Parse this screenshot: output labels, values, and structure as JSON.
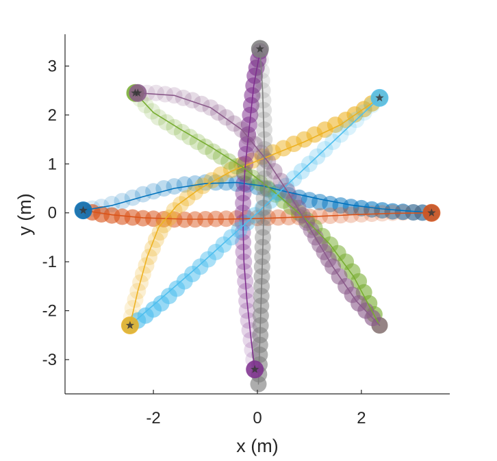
{
  "chart_data": {
    "type": "scatter",
    "title": "",
    "xlabel": "x (m)",
    "ylabel": "y (m)",
    "xlim": [
      -3.7,
      3.7
    ],
    "ylim": [
      -3.7,
      3.65
    ],
    "xticks": [
      -2,
      0,
      2
    ],
    "xtick_labels": [
      "-2",
      "0",
      "2"
    ],
    "yticks": [
      -3,
      -2,
      -1,
      0,
      1,
      2,
      3
    ],
    "ytick_labels": [
      "-3",
      "-2",
      "-1",
      "0",
      "1",
      "2",
      "3"
    ],
    "grid": false,
    "legend": "none",
    "series": [
      {
        "color": "#0072bd",
        "start": [
          -3.35,
          0.05
        ],
        "goal": [
          3.35,
          0.0
        ],
        "path": [
          [
            -3.35,
            0.05
          ],
          [
            -3.0,
            0.12
          ],
          [
            -2.6,
            0.24
          ],
          [
            -2.2,
            0.38
          ],
          [
            -1.8,
            0.5
          ],
          [
            -1.4,
            0.58
          ],
          [
            -1.0,
            0.62
          ],
          [
            -0.6,
            0.62
          ],
          [
            -0.2,
            0.58
          ],
          [
            0.2,
            0.48
          ],
          [
            0.6,
            0.36
          ],
          [
            1.0,
            0.26
          ],
          [
            1.4,
            0.18
          ],
          [
            1.8,
            0.12
          ],
          [
            2.2,
            0.07
          ],
          [
            2.6,
            0.03
          ],
          [
            3.0,
            0.01
          ],
          [
            3.35,
            0.0
          ]
        ],
        "line": [
          [
            -3.35,
            0.05
          ],
          [
            -2.8,
            0.15
          ],
          [
            -2.2,
            0.33
          ],
          [
            -1.6,
            0.5
          ],
          [
            -1.0,
            0.6
          ],
          [
            -0.4,
            0.62
          ],
          [
            0.1,
            0.55
          ],
          [
            0.6,
            0.42
          ],
          [
            1.2,
            0.28
          ],
          [
            1.8,
            0.16
          ],
          [
            2.4,
            0.08
          ],
          [
            3.0,
            0.03
          ],
          [
            3.35,
            0.0
          ]
        ]
      },
      {
        "color": "#d95319",
        "start": [
          3.35,
          0.0
        ],
        "goal": [
          -3.35,
          0.05
        ],
        "path": [
          [
            3.35,
            0.0
          ],
          [
            3.0,
            0.01
          ],
          [
            2.6,
            0.0
          ],
          [
            2.2,
            -0.02
          ],
          [
            1.8,
            -0.04
          ],
          [
            1.4,
            -0.06
          ],
          [
            1.0,
            -0.08
          ],
          [
            0.6,
            -0.09
          ],
          [
            0.2,
            -0.1
          ],
          [
            -0.2,
            -0.11
          ],
          [
            -0.6,
            -0.12
          ],
          [
            -1.0,
            -0.13
          ],
          [
            -1.4,
            -0.14
          ],
          [
            -1.8,
            -0.13
          ],
          [
            -2.2,
            -0.11
          ],
          [
            -2.6,
            -0.08
          ],
          [
            -3.0,
            -0.03
          ],
          [
            -3.35,
            0.05
          ]
        ],
        "line": [
          [
            3.35,
            0.0
          ],
          [
            2.6,
            -0.01
          ],
          [
            1.8,
            -0.04
          ],
          [
            1.0,
            -0.08
          ],
          [
            0.2,
            -0.11
          ],
          [
            -0.6,
            -0.13
          ],
          [
            -1.4,
            -0.13
          ],
          [
            -2.2,
            -0.1
          ],
          [
            -2.8,
            -0.04
          ],
          [
            -3.35,
            0.05
          ]
        ]
      },
      {
        "color": "#edb120",
        "start": [
          -2.45,
          -2.3
        ],
        "goal": [
          2.35,
          2.35
        ],
        "path": [
          [
            -2.45,
            -2.3
          ],
          [
            -2.4,
            -1.95
          ],
          [
            -2.3,
            -1.6
          ],
          [
            -2.2,
            -1.25
          ],
          [
            -2.08,
            -0.9
          ],
          [
            -1.95,
            -0.55
          ],
          [
            -1.8,
            -0.25
          ],
          [
            -1.6,
            0.05
          ],
          [
            -1.35,
            0.3
          ],
          [
            -1.05,
            0.55
          ],
          [
            -0.7,
            0.78
          ],
          [
            -0.3,
            0.98
          ],
          [
            0.1,
            1.15
          ],
          [
            0.5,
            1.32
          ],
          [
            0.9,
            1.5
          ],
          [
            1.3,
            1.7
          ],
          [
            1.7,
            1.9
          ],
          [
            2.05,
            2.12
          ],
          [
            2.35,
            2.35
          ]
        ],
        "line": [
          [
            -2.45,
            -2.3
          ],
          [
            -2.3,
            -1.6
          ],
          [
            -2.12,
            -0.9
          ],
          [
            -1.9,
            -0.3
          ],
          [
            -1.55,
            0.15
          ],
          [
            -1.1,
            0.5
          ],
          [
            -0.5,
            0.85
          ],
          [
            0.2,
            1.15
          ],
          [
            0.9,
            1.45
          ],
          [
            1.6,
            1.8
          ],
          [
            2.35,
            2.35
          ]
        ]
      },
      {
        "color": "#7e2f8e",
        "start": [
          -0.05,
          -3.2
        ],
        "goal": [
          0.05,
          3.3
        ],
        "path": [
          [
            -0.05,
            -3.2
          ],
          [
            -0.1,
            -2.8
          ],
          [
            -0.15,
            -2.4
          ],
          [
            -0.2,
            -2.0
          ],
          [
            -0.22,
            -1.6
          ],
          [
            -0.25,
            -1.2
          ],
          [
            -0.27,
            -0.8
          ],
          [
            -0.28,
            -0.4
          ],
          [
            -0.28,
            0.0
          ],
          [
            -0.27,
            0.4
          ],
          [
            -0.25,
            0.8
          ],
          [
            -0.22,
            1.2
          ],
          [
            -0.18,
            1.6
          ],
          [
            -0.14,
            2.0
          ],
          [
            -0.1,
            2.4
          ],
          [
            -0.05,
            2.8
          ],
          [
            0.05,
            3.3
          ]
        ],
        "line": [
          [
            -0.05,
            -3.2
          ],
          [
            -0.12,
            -2.6
          ],
          [
            -0.2,
            -1.8
          ],
          [
            -0.26,
            -1.0
          ],
          [
            -0.28,
            0.0
          ],
          [
            -0.24,
            0.9
          ],
          [
            -0.15,
            1.8
          ],
          [
            -0.07,
            2.6
          ],
          [
            0.05,
            3.3
          ]
        ]
      },
      {
        "color": "#77ac30",
        "start": [
          -2.35,
          2.45
        ],
        "goal": [
          2.35,
          -2.3
        ],
        "path": [
          [
            -2.35,
            2.45
          ],
          [
            -2.15,
            2.2
          ],
          [
            -1.9,
            1.95
          ],
          [
            -1.6,
            1.75
          ],
          [
            -1.3,
            1.55
          ],
          [
            -1.0,
            1.35
          ],
          [
            -0.7,
            1.15
          ],
          [
            -0.4,
            0.95
          ],
          [
            -0.1,
            0.72
          ],
          [
            0.2,
            0.5
          ],
          [
            0.5,
            0.25
          ],
          [
            0.8,
            0.0
          ],
          [
            1.1,
            -0.3
          ],
          [
            1.4,
            -0.65
          ],
          [
            1.7,
            -1.0
          ],
          [
            1.95,
            -1.4
          ],
          [
            2.15,
            -1.85
          ],
          [
            2.35,
            -2.3
          ]
        ],
        "line": [
          [
            -2.35,
            2.45
          ],
          [
            -2.0,
            2.05
          ],
          [
            -1.5,
            1.72
          ],
          [
            -0.9,
            1.35
          ],
          [
            -0.3,
            0.95
          ],
          [
            0.3,
            0.45
          ],
          [
            0.9,
            -0.1
          ],
          [
            1.4,
            -0.65
          ],
          [
            1.85,
            -1.3
          ],
          [
            2.35,
            -2.3
          ]
        ]
      },
      {
        "color": "#4dbeee",
        "start": [
          2.35,
          2.35
        ],
        "goal": [
          -2.45,
          -2.3
        ],
        "path": [
          [
            2.35,
            2.35
          ],
          [
            2.05,
            2.05
          ],
          [
            1.75,
            1.75
          ],
          [
            1.45,
            1.45
          ],
          [
            1.15,
            1.15
          ],
          [
            0.85,
            0.85
          ],
          [
            0.55,
            0.55
          ],
          [
            0.25,
            0.25
          ],
          [
            -0.05,
            -0.05
          ],
          [
            -0.35,
            -0.35
          ],
          [
            -0.65,
            -0.65
          ],
          [
            -0.95,
            -0.95
          ],
          [
            -1.25,
            -1.25
          ],
          [
            -1.55,
            -1.55
          ],
          [
            -1.85,
            -1.85
          ],
          [
            -2.15,
            -2.1
          ],
          [
            -2.45,
            -2.3
          ]
        ],
        "line": [
          [
            2.35,
            2.35
          ],
          [
            1.2,
            1.2
          ],
          [
            0.0,
            0.0
          ],
          [
            -1.2,
            -1.15
          ],
          [
            -2.45,
            -2.3
          ]
        ]
      },
      {
        "color": "#8a5a8a",
        "start": [
          -2.3,
          2.45
        ],
        "goal": [
          2.35,
          -2.3
        ],
        "path": [
          [
            -2.3,
            2.45
          ],
          [
            -1.95,
            2.45
          ],
          [
            -1.6,
            2.4
          ],
          [
            -1.25,
            2.3
          ],
          [
            -0.9,
            2.15
          ],
          [
            -0.6,
            1.95
          ],
          [
            -0.3,
            1.7
          ],
          [
            -0.05,
            1.4
          ],
          [
            0.2,
            1.05
          ],
          [
            0.45,
            0.65
          ],
          [
            0.7,
            0.25
          ],
          [
            0.95,
            -0.2
          ],
          [
            1.2,
            -0.65
          ],
          [
            1.45,
            -1.1
          ],
          [
            1.7,
            -1.5
          ],
          [
            1.95,
            -1.85
          ],
          [
            2.35,
            -2.3
          ]
        ],
        "line": [
          [
            -2.3,
            2.45
          ],
          [
            -1.6,
            2.4
          ],
          [
            -0.9,
            2.15
          ],
          [
            -0.3,
            1.7
          ],
          [
            0.2,
            1.05
          ],
          [
            0.6,
            0.4
          ],
          [
            1.0,
            -0.3
          ],
          [
            1.45,
            -1.1
          ],
          [
            1.9,
            -1.8
          ],
          [
            2.35,
            -2.3
          ]
        ]
      },
      {
        "color": "#7f7f7f",
        "start": [
          0.05,
          3.35
        ],
        "goal": [
          0.0,
          -3.5
        ],
        "path": [
          [
            0.05,
            3.35
          ],
          [
            0.08,
            2.9
          ],
          [
            0.1,
            2.5
          ],
          [
            0.12,
            2.1
          ],
          [
            0.13,
            1.7
          ],
          [
            0.14,
            1.3
          ],
          [
            0.14,
            0.9
          ],
          [
            0.13,
            0.5
          ],
          [
            0.12,
            0.1
          ],
          [
            0.11,
            -0.3
          ],
          [
            0.1,
            -0.7
          ],
          [
            0.09,
            -1.1
          ],
          [
            0.08,
            -1.5
          ],
          [
            0.07,
            -1.9
          ],
          [
            0.06,
            -2.3
          ],
          [
            0.05,
            -2.7
          ],
          [
            0.04,
            -3.1
          ],
          [
            0.02,
            -3.5
          ]
        ],
        "line": [
          [
            0.05,
            3.35
          ],
          [
            0.1,
            2.5
          ],
          [
            0.13,
            1.5
          ],
          [
            0.13,
            0.5
          ],
          [
            0.11,
            -0.5
          ],
          [
            0.08,
            -1.5
          ],
          [
            0.05,
            -2.5
          ],
          [
            0.02,
            -3.5
          ]
        ]
      }
    ]
  }
}
